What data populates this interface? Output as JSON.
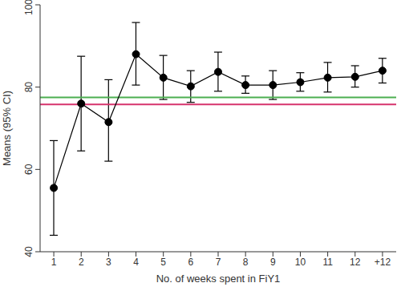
{
  "chart_data": {
    "type": "line",
    "x_label": "No. of weeks spent in FiY1",
    "y_label": "Means (95% CI)",
    "categories": [
      "1",
      "2",
      "3",
      "4",
      "5",
      "6",
      "7",
      "8",
      "9",
      "10",
      "11",
      "12",
      "+12"
    ],
    "values": [
      55.5,
      76,
      71.5,
      88,
      82.3,
      80.2,
      83.7,
      80.5,
      80.5,
      81.2,
      82.3,
      82.5,
      84
    ],
    "ci_lower": [
      44,
      64.5,
      62,
      80.5,
      77,
      76.3,
      79,
      78.5,
      77,
      79,
      78.8,
      80,
      81
    ],
    "ci_upper": [
      67,
      87.5,
      81.8,
      95.7,
      87.7,
      84,
      88.5,
      82.7,
      84,
      83.5,
      86,
      85.2,
      87
    ],
    "color": "#000000",
    "marker": "circle",
    "ylim": [
      40,
      100
    ],
    "yticks": [
      40,
      60,
      80,
      100
    ],
    "reference_lines": [
      {
        "value": 77.5,
        "color": "#4caf50"
      },
      {
        "value": 75.8,
        "color": "#d6336c"
      }
    ]
  }
}
